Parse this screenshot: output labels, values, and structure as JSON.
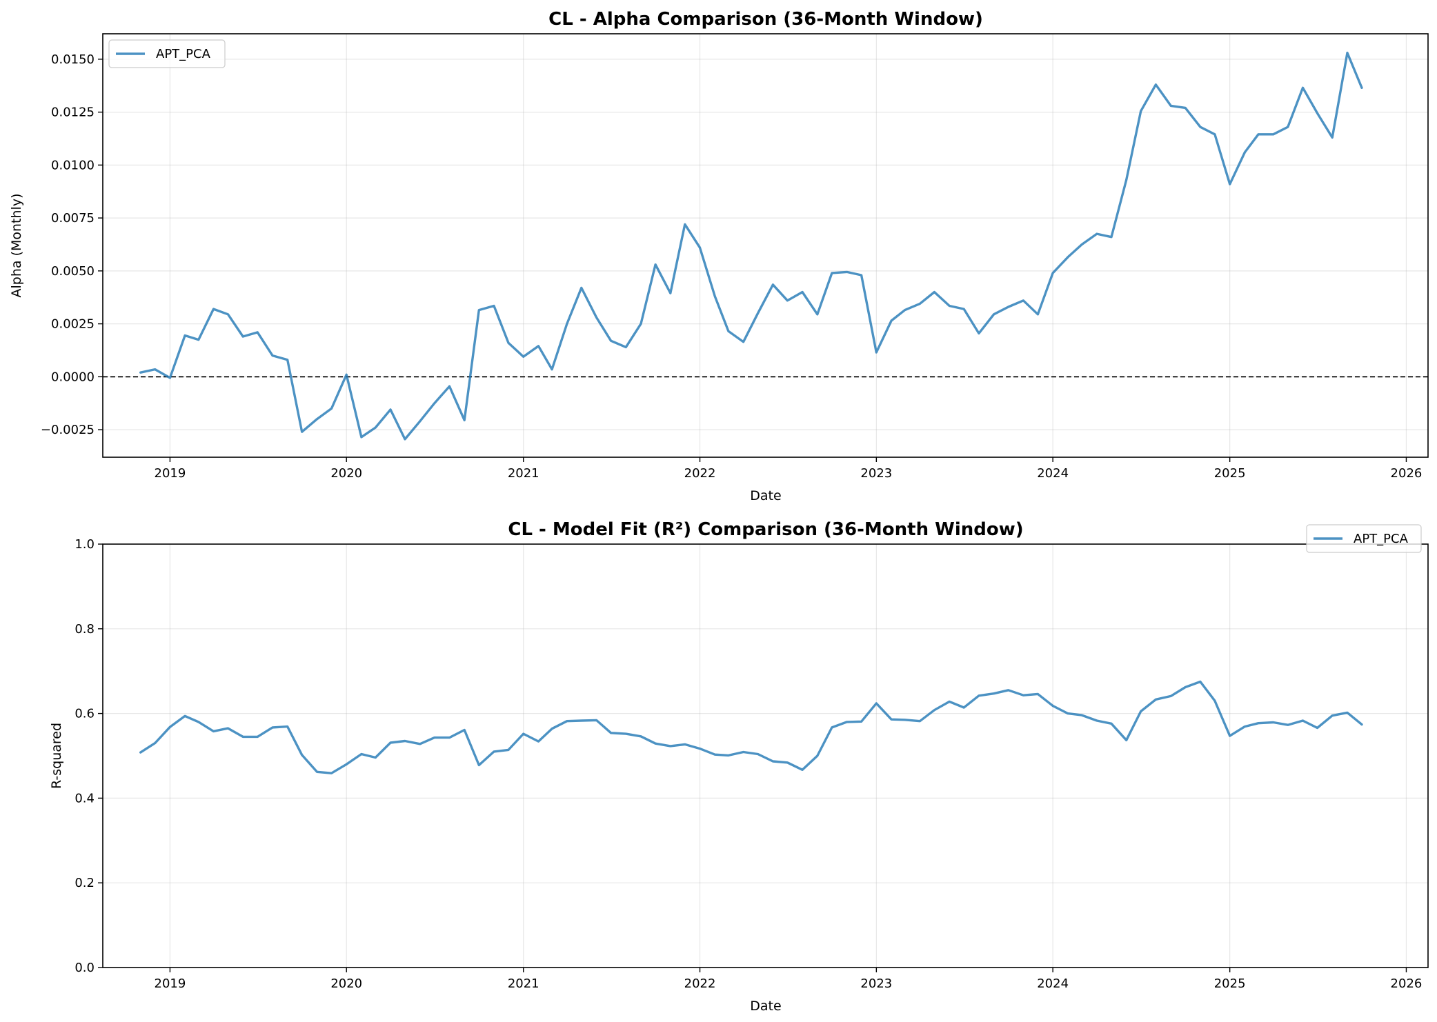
{
  "chart_data": [
    {
      "type": "line",
      "title": "CL - Alpha Comparison (36-Month Window)",
      "xlabel": "Date",
      "ylabel": "Alpha (Monthly)",
      "xlim": [
        "2018-08-15",
        "2026-02-15"
      ],
      "ylim": [
        -0.0038,
        0.0162
      ],
      "x_ticks": [
        "2019",
        "2020",
        "2021",
        "2022",
        "2023",
        "2024",
        "2025",
        "2026"
      ],
      "y_ticks": [
        "−0.0025",
        "0.0000",
        "0.0025",
        "0.0050",
        "0.0075",
        "0.0100",
        "0.0125",
        "0.0150"
      ],
      "y_tick_values": [
        -0.0025,
        0,
        0.0025,
        0.005,
        0.0075,
        0.01,
        0.0125,
        0.015
      ],
      "grid": true,
      "zero_line": true,
      "legend_position": "upper-left",
      "colors": {
        "APT_PCA": "#1f77b4"
      },
      "x": [
        "2018-11",
        "2018-12",
        "2019-01",
        "2019-02",
        "2019-03",
        "2019-04",
        "2019-05",
        "2019-06",
        "2019-07",
        "2019-08",
        "2019-09",
        "2019-10",
        "2019-11",
        "2019-12",
        "2020-01",
        "2020-02",
        "2020-03",
        "2020-04",
        "2020-05",
        "2020-06",
        "2020-07",
        "2020-08",
        "2020-09",
        "2020-10",
        "2020-11",
        "2020-12",
        "2021-01",
        "2021-02",
        "2021-03",
        "2021-04",
        "2021-05",
        "2021-06",
        "2021-07",
        "2021-08",
        "2021-09",
        "2021-10",
        "2021-11",
        "2021-12",
        "2022-01",
        "2022-02",
        "2022-03",
        "2022-04",
        "2022-05",
        "2022-06",
        "2022-07",
        "2022-08",
        "2022-09",
        "2022-10",
        "2022-11",
        "2022-12",
        "2023-01",
        "2023-02",
        "2023-03",
        "2023-04",
        "2023-05",
        "2023-06",
        "2023-07",
        "2023-08",
        "2023-09",
        "2023-10",
        "2023-11",
        "2023-12",
        "2024-01",
        "2024-02",
        "2024-03",
        "2024-04",
        "2024-05",
        "2024-06",
        "2024-07",
        "2024-08",
        "2024-09",
        "2024-10",
        "2024-11",
        "2024-12",
        "2025-01",
        "2025-02",
        "2025-03",
        "2025-04",
        "2025-05",
        "2025-06",
        "2025-07",
        "2025-08",
        "2025-09",
        "2025-10"
      ],
      "series": [
        {
          "name": "APT_PCA",
          "values": [
            0.0002,
            0.00035,
            -5e-05,
            0.00195,
            0.00175,
            0.0032,
            0.00295,
            0.0019,
            0.0021,
            0.001,
            0.0008,
            -0.0026,
            -0.002,
            -0.0015,
            0.0001,
            -0.00285,
            -0.0024,
            -0.00155,
            -0.00295,
            -0.0021,
            -0.00125,
            -0.00045,
            -0.00205,
            0.00315,
            0.00335,
            0.0016,
            0.00095,
            0.00145,
            0.00035,
            0.0025,
            0.0042,
            0.0028,
            0.0017,
            0.0014,
            0.0025,
            0.0053,
            0.00395,
            0.0072,
            0.0061,
            0.0038,
            0.00215,
            0.00165,
            0.003,
            0.00435,
            0.0036,
            0.004,
            0.00295,
            0.0049,
            0.00495,
            0.0048,
            0.00115,
            0.00265,
            0.00315,
            0.00345,
            0.004,
            0.00335,
            0.0032,
            0.00205,
            0.00295,
            0.0033,
            0.0036,
            0.00295,
            0.0049,
            0.00565,
            0.00625,
            0.00675,
            0.0066,
            0.0093,
            0.01255,
            0.0138,
            0.0128,
            0.0127,
            0.0118,
            0.01145,
            0.0091,
            0.0106,
            0.01145,
            0.01145,
            0.0118,
            0.01365,
            0.01245,
            0.0113,
            0.0153,
            0.01365
          ]
        }
      ]
    },
    {
      "type": "line",
      "title": "CL - Model Fit (R²) Comparison (36-Month Window)",
      "xlabel": "Date",
      "ylabel": "R-squared",
      "xlim": [
        "2018-08-15",
        "2026-02-15"
      ],
      "ylim": [
        0,
        1
      ],
      "x_ticks": [
        "2019",
        "2020",
        "2021",
        "2022",
        "2023",
        "2024",
        "2025",
        "2026"
      ],
      "y_ticks": [
        "0.0",
        "0.2",
        "0.4",
        "0.6",
        "0.8",
        "1.0"
      ],
      "y_tick_values": [
        0,
        0.2,
        0.4,
        0.6,
        0.8,
        1.0
      ],
      "grid": true,
      "zero_line": false,
      "legend_position": "upper-right",
      "colors": {
        "APT_PCA": "#1f77b4"
      },
      "x": [
        "2018-11",
        "2018-12",
        "2019-01",
        "2019-02",
        "2019-03",
        "2019-04",
        "2019-05",
        "2019-06",
        "2019-07",
        "2019-08",
        "2019-09",
        "2019-10",
        "2019-11",
        "2019-12",
        "2020-01",
        "2020-02",
        "2020-03",
        "2020-04",
        "2020-05",
        "2020-06",
        "2020-07",
        "2020-08",
        "2020-09",
        "2020-10",
        "2020-11",
        "2020-12",
        "2021-01",
        "2021-02",
        "2021-03",
        "2021-04",
        "2021-05",
        "2021-06",
        "2021-07",
        "2021-08",
        "2021-09",
        "2021-10",
        "2021-11",
        "2021-12",
        "2022-01",
        "2022-02",
        "2022-03",
        "2022-04",
        "2022-05",
        "2022-06",
        "2022-07",
        "2022-08",
        "2022-09",
        "2022-10",
        "2022-11",
        "2022-12",
        "2023-01",
        "2023-02",
        "2023-03",
        "2023-04",
        "2023-05",
        "2023-06",
        "2023-07",
        "2023-08",
        "2023-09",
        "2023-10",
        "2023-11",
        "2023-12",
        "2024-01",
        "2024-02",
        "2024-03",
        "2024-04",
        "2024-05",
        "2024-06",
        "2024-07",
        "2024-08",
        "2024-09",
        "2024-10",
        "2024-11",
        "2024-12",
        "2025-01",
        "2025-02",
        "2025-03",
        "2025-04",
        "2025-05",
        "2025-06",
        "2025-07",
        "2025-08",
        "2025-09",
        "2025-10"
      ],
      "series": [
        {
          "name": "APT_PCA",
          "values": [
            0.508,
            0.53,
            0.568,
            0.594,
            0.58,
            0.558,
            0.565,
            0.545,
            0.545,
            0.567,
            0.569,
            0.502,
            0.462,
            0.459,
            0.48,
            0.504,
            0.496,
            0.531,
            0.535,
            0.528,
            0.543,
            0.543,
            0.561,
            0.478,
            0.51,
            0.514,
            0.552,
            0.534,
            0.564,
            0.582,
            0.583,
            0.584,
            0.554,
            0.552,
            0.546,
            0.529,
            0.523,
            0.527,
            0.517,
            0.503,
            0.501,
            0.509,
            0.504,
            0.487,
            0.484,
            0.467,
            0.5,
            0.567,
            0.58,
            0.581,
            0.624,
            0.586,
            0.585,
            0.582,
            0.608,
            0.628,
            0.614,
            0.642,
            0.647,
            0.655,
            0.643,
            0.646,
            0.618,
            0.6,
            0.596,
            0.583,
            0.576,
            0.537,
            0.605,
            0.633,
            0.641,
            0.662,
            0.675,
            0.63,
            0.547,
            0.569,
            0.577,
            0.579,
            0.573,
            0.583,
            0.566,
            0.595,
            0.602,
            0.574
          ]
        }
      ]
    }
  ]
}
